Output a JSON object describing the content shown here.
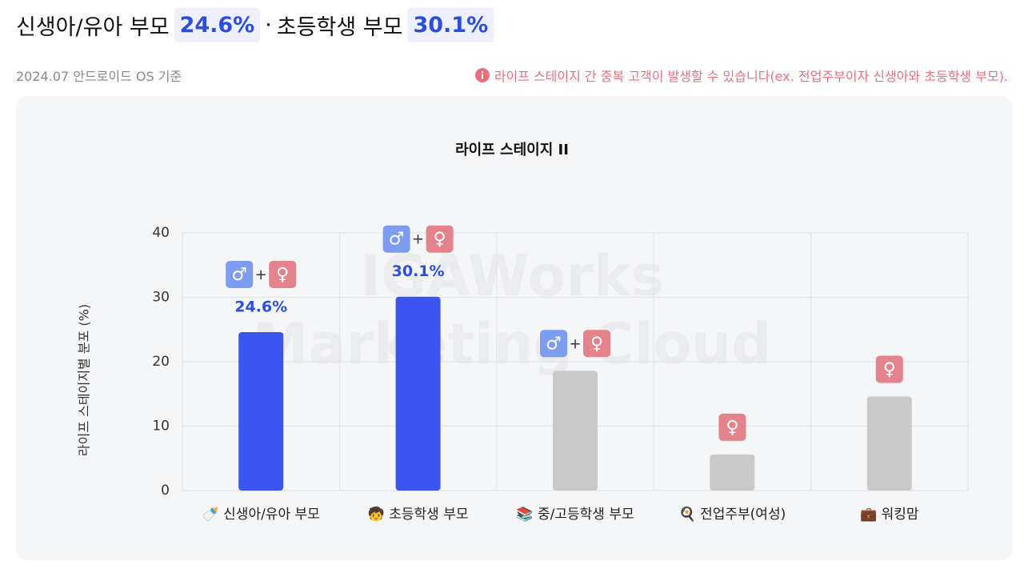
{
  "header": {
    "title": [
      "신생아/유아 부모",
      "24.6%",
      "·",
      "초등학생 부모",
      "30.1%"
    ],
    "subtitle": "2024.07 안드로이드 OS 기준",
    "notice": "라이프 스테이지 간 중복 고객이 발생할 수 있습니다(ex. 전업주부이자 신생아와 초등학생 부모)."
  },
  "chart_data": {
    "type": "bar",
    "title": "라이프 스테이지 II",
    "y_label": "라이프 스테이지별 분포 (%)",
    "watermark": [
      "IGAWorks",
      "Marketing Cloud"
    ],
    "categories": [
      "🍼 신생아/유아 부모",
      "🧒 초등학생 부모",
      "📚 중/고등학생 부모",
      "🍳 전업주부(여성)",
      "💼 워킹맘"
    ],
    "values": [
      24.6,
      30.1,
      18.6,
      5.6,
      14.6
    ],
    "value_labels": [
      "24.6%",
      "30.1%",
      null,
      null,
      null
    ],
    "colors": [
      "#3b55f0",
      "#3b55f0",
      "#c9c9c9",
      "#c9c9c9",
      "#c9c9c9"
    ],
    "gender_icons": [
      [
        "♂",
        "+",
        "♀"
      ],
      [
        "♂",
        "+",
        "♀"
      ],
      [
        "♂",
        "+",
        "♀"
      ],
      [
        "♀"
      ],
      [
        "♀"
      ]
    ],
    "icon_colors": {
      "♂": "#7d9ef0",
      "♀": "#e5838c"
    },
    "ylim": [
      0,
      40
    ],
    "yticks": [
      0,
      10,
      20,
      30,
      40
    ],
    "grid": true
  }
}
